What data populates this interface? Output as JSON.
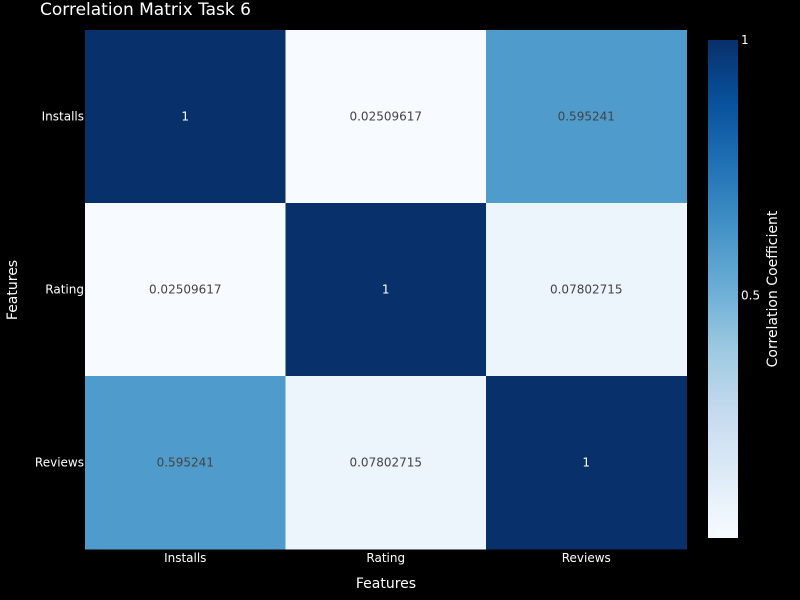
{
  "chart_data": {
    "type": "heatmap",
    "title": "Correlation Matrix Task 6",
    "xlabel": "Features",
    "ylabel": "Features",
    "x_categories": [
      "Installs",
      "Rating",
      "Reviews"
    ],
    "y_categories": [
      "Installs",
      "Rating",
      "Reviews"
    ],
    "z": [
      [
        1,
        0.02509617,
        0.595241
      ],
      [
        0.02509617,
        1,
        0.07802715
      ],
      [
        0.595241,
        0.07802715,
        1
      ]
    ],
    "cell_labels": [
      [
        "1",
        "0.02509617",
        "0.595241"
      ],
      [
        "0.02509617",
        "1",
        "0.07802715"
      ],
      [
        "0.595241",
        "0.07802715",
        "1"
      ]
    ],
    "colorscale": "Blues",
    "colorbar": {
      "title": "Correlation Coefficient",
      "range": [
        0.02509617,
        1
      ],
      "ticks": [
        0.5,
        1
      ],
      "tick_labels": [
        "0.5",
        "1"
      ]
    },
    "colors": {
      "background": "#000000",
      "text": "#ffffff",
      "blues_scale": [
        "#f7fbff",
        "#deebf7",
        "#c6dbef",
        "#9ecae1",
        "#6baed6",
        "#4292c6",
        "#2171b5",
        "#08519c",
        "#08306b"
      ]
    }
  }
}
